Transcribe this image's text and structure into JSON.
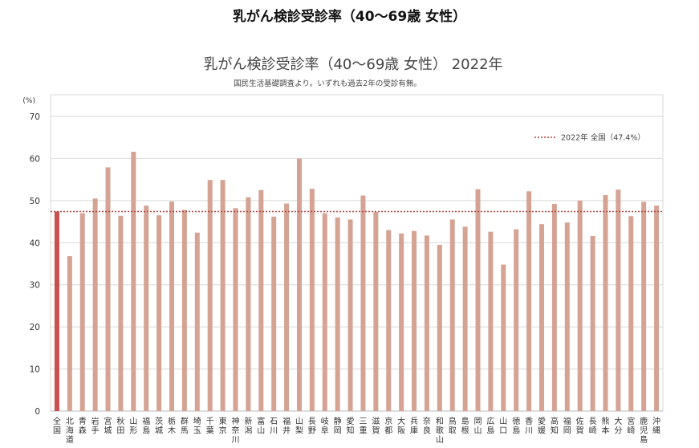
{
  "page": {
    "title": "乳がん検診受診率（40～69歳 女性）"
  },
  "chart_data": {
    "type": "bar",
    "title": "乳がん検診受診率（40～69歳 女性） 2022年",
    "subtitle": "国民生活基礎調査より。いずれも過去2年の受診有無。",
    "y_unit": "(%)",
    "ylim": [
      0,
      70
    ],
    "y_ticks": [
      0,
      10,
      20,
      30,
      40,
      50,
      60,
      70
    ],
    "grid": true,
    "legend_position": "top-right",
    "reference_line": {
      "label": "2022年 全国（47.4%）",
      "value": 47.4,
      "color": "#b5433e"
    },
    "bar_color": "#d4a394",
    "highlight_color": "#c8504e",
    "highlight_index": 0,
    "categories": [
      "全国",
      "北海道",
      "青森",
      "岩手",
      "宮城",
      "秋田",
      "山形",
      "福島",
      "茨城",
      "栃木",
      "群馬",
      "埼玉",
      "千葉",
      "東京",
      "神奈川",
      "新潟",
      "富山",
      "石川",
      "福井",
      "山梨",
      "長野",
      "岐阜",
      "静岡",
      "愛知",
      "三重",
      "滋賀",
      "京都",
      "大阪",
      "兵庫",
      "奈良",
      "和歌山",
      "鳥取",
      "島根",
      "岡山",
      "広島",
      "山口",
      "徳島",
      "香川",
      "愛媛",
      "高知",
      "福岡",
      "佐賀",
      "長崎",
      "熊本",
      "大分",
      "宮崎",
      "鹿児島",
      "沖縄"
    ],
    "values": [
      47.4,
      36.8,
      47.0,
      50.5,
      57.9,
      46.4,
      61.6,
      48.8,
      46.5,
      49.8,
      47.8,
      42.4,
      54.9,
      54.9,
      48.2,
      50.8,
      52.5,
      46.2,
      49.3,
      60.0,
      52.8,
      47.0,
      46.0,
      45.5,
      51.2,
      47.3,
      43.0,
      42.2,
      42.8,
      41.7,
      39.5,
      45.5,
      43.8,
      52.7,
      42.6,
      34.8,
      43.2,
      52.2,
      44.4,
      49.2,
      44.8,
      50.0,
      41.6,
      51.3,
      52.6,
      46.3,
      49.7,
      48.8
    ]
  }
}
